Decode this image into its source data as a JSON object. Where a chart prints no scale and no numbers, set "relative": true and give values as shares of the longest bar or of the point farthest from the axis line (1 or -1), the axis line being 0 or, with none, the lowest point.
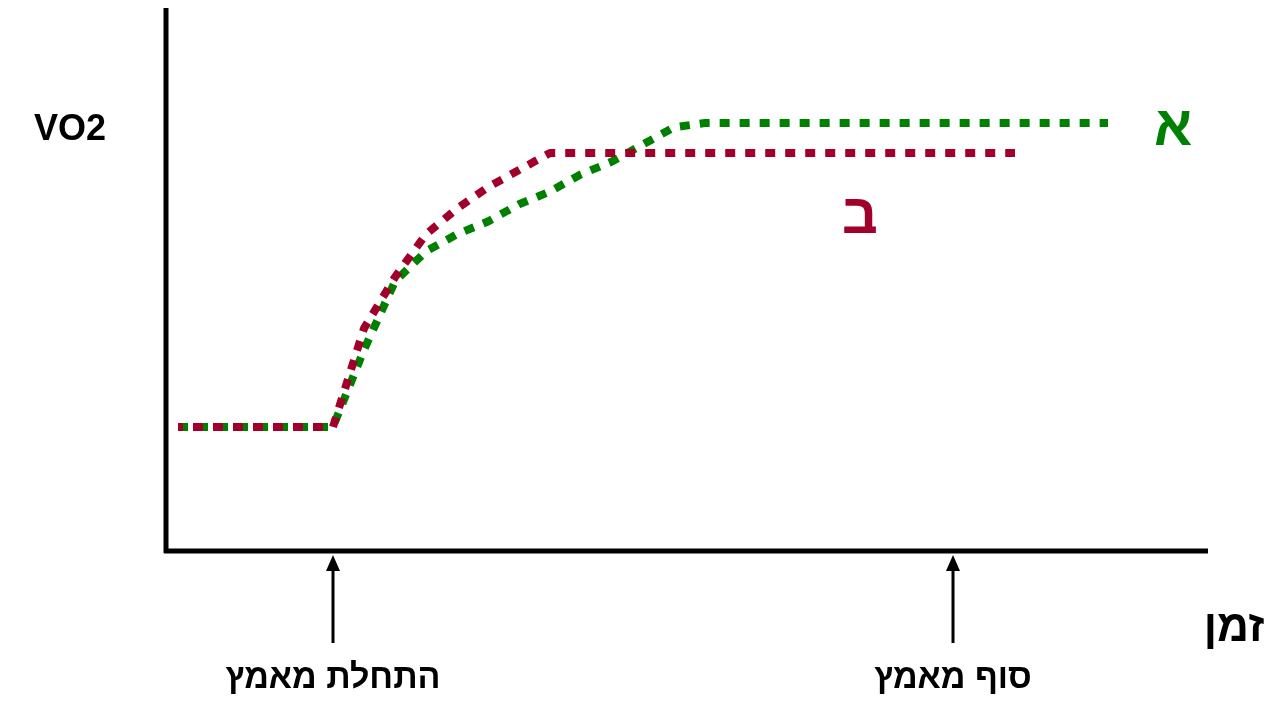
{
  "chart_data": {
    "type": "line",
    "relative": true,
    "ylabel": "VO2",
    "xlabel": "זמן",
    "categories": [
      null,
      null,
      null,
      null,
      null,
      "התחלת מאמץ",
      null,
      null,
      null,
      null,
      null,
      null,
      null,
      null,
      null,
      null,
      null,
      null,
      null,
      null,
      null,
      null,
      null,
      null,
      null,
      "סוף מאמץ",
      null,
      null,
      null,
      null,
      null,
      null,
      null,
      null
    ],
    "series": [
      {
        "name": "א",
        "color": "#008000",
        "values": [
          0.29,
          0.29,
          0.29,
          0.29,
          0.29,
          0.29,
          0.47,
          0.63,
          0.7,
          0.74,
          0.77,
          0.81,
          0.84,
          0.88,
          0.91,
          0.95,
          0.99,
          1,
          1,
          1,
          1,
          1,
          1,
          1,
          1,
          1,
          1,
          1,
          1,
          1,
          1,
          null,
          null,
          null
        ]
      },
      {
        "name": "ב",
        "color": "#a0002a",
        "values": [
          0.29,
          0.29,
          0.29,
          0.29,
          0.29,
          0.29,
          0.52,
          0.64,
          0.74,
          0.8,
          0.85,
          0.89,
          0.93,
          0.93,
          0.93,
          0.93,
          0.93,
          0.93,
          0.93,
          0.93,
          0.93,
          0.93,
          0.93,
          0.93,
          0.93,
          0.93,
          0.93,
          0.93,
          null,
          null,
          null,
          null,
          null,
          null
        ]
      }
    ],
    "line_style": "dotted",
    "marker": "none",
    "legend": false,
    "grid": false
  }
}
